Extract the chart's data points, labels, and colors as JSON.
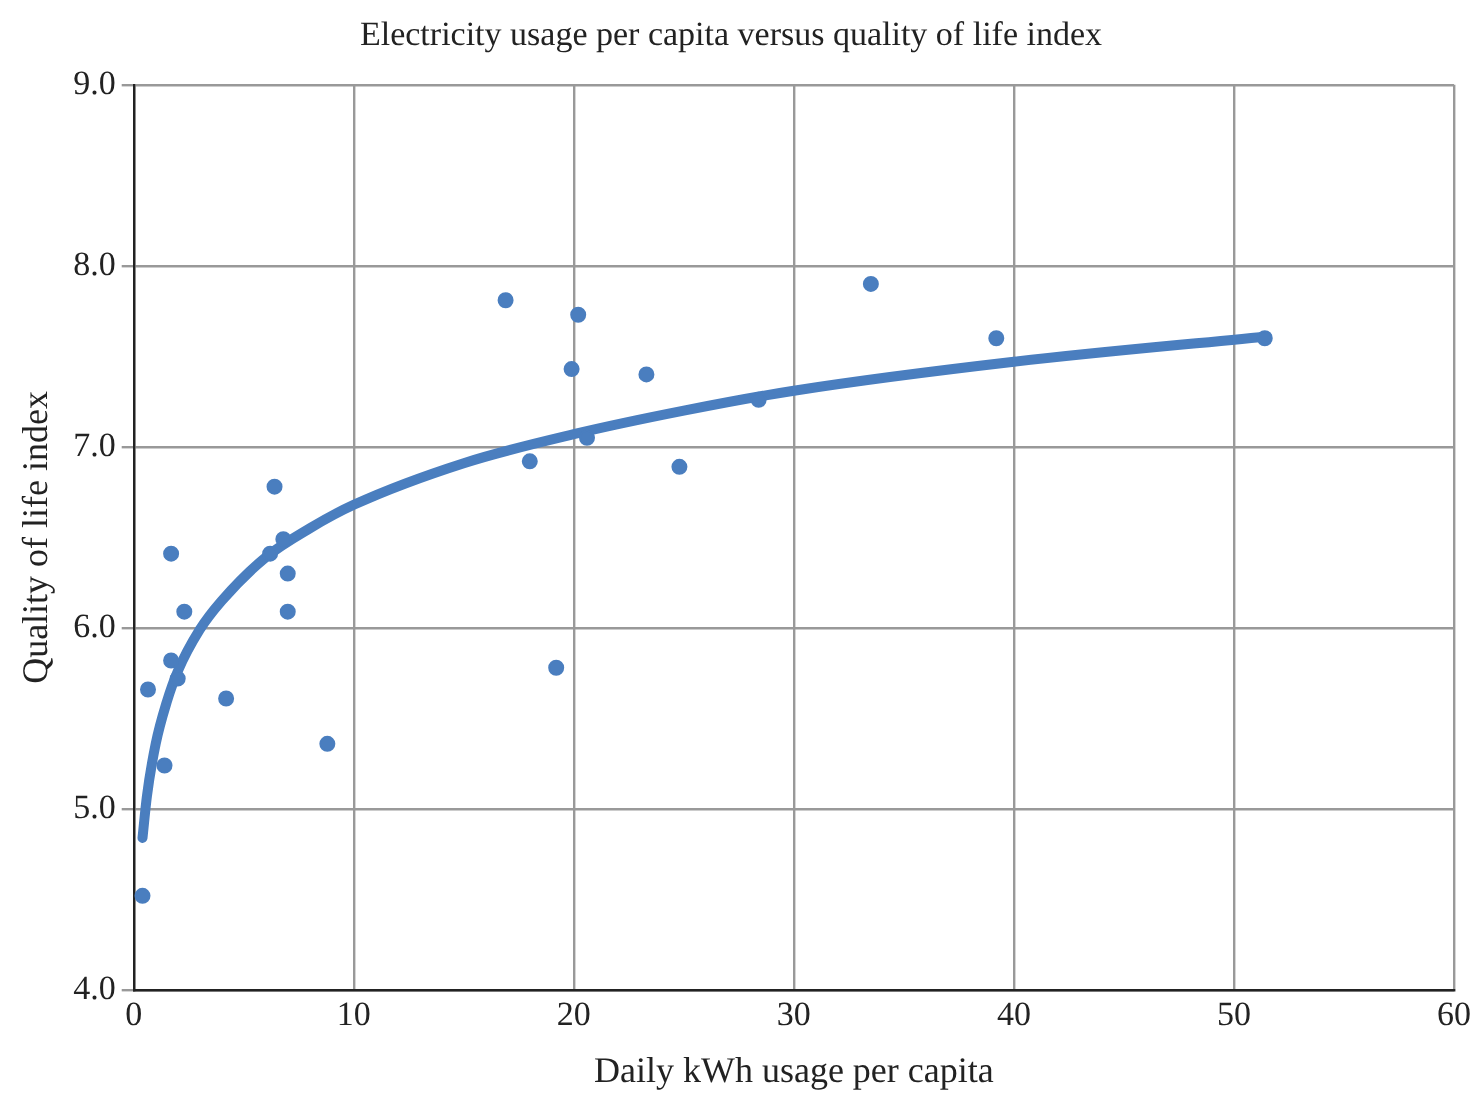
{
  "chart_data": {
    "type": "scatter",
    "title": "Electricity usage per capita versus quality of life index",
    "xlabel": "Daily kWh usage per capita",
    "ylabel": "Quality of life index",
    "xlim": [
      0,
      60
    ],
    "xticks": [
      0,
      10,
      20,
      30,
      40,
      50,
      60
    ],
    "ylim": [
      4.0,
      9.0
    ],
    "yticks": [
      {
        "value": 4,
        "label": "4.0"
      },
      {
        "value": 5,
        "label": "5.0"
      },
      {
        "value": 6,
        "label": "6.0"
      },
      {
        "value": 7,
        "label": "7.0"
      },
      {
        "value": 8,
        "label": "8.0"
      },
      {
        "value": 9,
        "label": "9.0"
      }
    ],
    "grid": true,
    "legend": false,
    "marker": "circle",
    "series": [
      {
        "type": "scatter",
        "color": "#4a7ebf",
        "x": [
          0.4,
          0.65,
          1.4,
          1.7,
          1.7,
          2.0,
          2.3,
          4.2,
          6.2,
          6.4,
          6.8,
          7.0,
          7.0,
          8.8,
          16.9,
          18.0,
          19.2,
          19.9,
          20.2,
          20.6,
          23.3,
          24.8,
          28.4,
          33.5,
          39.2,
          51.4
        ],
        "values": [
          4.52,
          5.66,
          5.24,
          6.41,
          5.82,
          5.72,
          6.09,
          5.61,
          6.41,
          6.78,
          6.49,
          6.3,
          6.09,
          5.36,
          7.81,
          6.92,
          5.78,
          7.43,
          7.73,
          7.05,
          7.4,
          6.89,
          7.26,
          7.9,
          7.6,
          7.6
        ]
      },
      {
        "type": "line",
        "color": "#4a7ebf",
        "marker": "none",
        "line_style": "solid",
        "x": [
          0.4,
          0.6,
          1,
          1.5,
          2,
          3,
          4,
          6,
          8,
          10,
          15,
          20,
          25,
          30,
          40,
          51.5
        ],
        "values": [
          4.84,
          5.07,
          5.36,
          5.59,
          5.76,
          5.99,
          6.15,
          6.39,
          6.55,
          6.68,
          6.91,
          7.07,
          7.2,
          7.31,
          7.47,
          7.61
        ]
      }
    ]
  }
}
